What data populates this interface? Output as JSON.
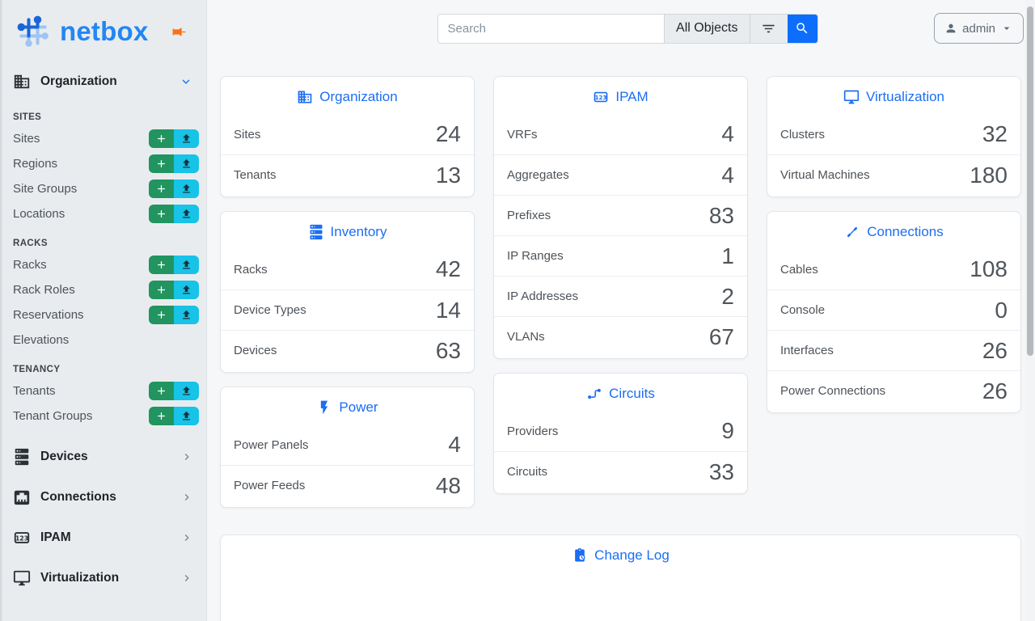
{
  "colors": {
    "accent_blue": "#1b6ef3",
    "brand_blue": "#2287f4",
    "search_button_blue": "#0d6efd",
    "add_green": "#21945f",
    "import_cyan": "#17c3e6",
    "pin_orange": "#f97316"
  },
  "sidebar": {
    "brand": "netbox",
    "organization": {
      "label": "Organization",
      "icon": "building-icon",
      "expanded": true,
      "sections": [
        {
          "header": "SITES",
          "items": [
            {
              "label": "Sites",
              "actions": true
            },
            {
              "label": "Regions",
              "actions": true
            },
            {
              "label": "Site Groups",
              "actions": true
            },
            {
              "label": "Locations",
              "actions": true
            }
          ]
        },
        {
          "header": "RACKS",
          "items": [
            {
              "label": "Racks",
              "actions": true
            },
            {
              "label": "Rack Roles",
              "actions": true
            },
            {
              "label": "Reservations",
              "actions": true
            },
            {
              "label": "Elevations",
              "actions": false
            }
          ]
        },
        {
          "header": "TENANCY",
          "items": [
            {
              "label": "Tenants",
              "actions": true
            },
            {
              "label": "Tenant Groups",
              "actions": true
            }
          ]
        }
      ]
    },
    "groups": [
      {
        "label": "Devices",
        "icon": "server-icon"
      },
      {
        "label": "Connections",
        "icon": "ethernet-icon"
      },
      {
        "label": "IPAM",
        "icon": "counter-icon"
      },
      {
        "label": "Virtualization",
        "icon": "monitor-icon"
      }
    ]
  },
  "topbar": {
    "search": {
      "placeholder": "Search",
      "scope": "All Objects"
    },
    "user": "admin"
  },
  "dashboard": {
    "columns": [
      [
        {
          "title": "Organization",
          "icon": "building-icon",
          "rows": [
            {
              "label": "Sites",
              "value": "24"
            },
            {
              "label": "Tenants",
              "value": "13"
            }
          ]
        },
        {
          "title": "Inventory",
          "icon": "server-icon",
          "rows": [
            {
              "label": "Racks",
              "value": "42"
            },
            {
              "label": "Device Types",
              "value": "14"
            },
            {
              "label": "Devices",
              "value": "63"
            }
          ]
        },
        {
          "title": "Power",
          "icon": "lightning-icon",
          "rows": [
            {
              "label": "Power Panels",
              "value": "4"
            },
            {
              "label": "Power Feeds",
              "value": "48"
            }
          ]
        }
      ],
      [
        {
          "title": "IPAM",
          "icon": "counter-icon",
          "rows": [
            {
              "label": "VRFs",
              "value": "4"
            },
            {
              "label": "Aggregates",
              "value": "4"
            },
            {
              "label": "Prefixes",
              "value": "83"
            },
            {
              "label": "IP Ranges",
              "value": "1"
            },
            {
              "label": "IP Addresses",
              "value": "2"
            },
            {
              "label": "VLANs",
              "value": "67"
            }
          ]
        },
        {
          "title": "Circuits",
          "icon": "circuits-icon",
          "rows": [
            {
              "label": "Providers",
              "value": "9"
            },
            {
              "label": "Circuits",
              "value": "33"
            }
          ]
        }
      ],
      [
        {
          "title": "Virtualization",
          "icon": "monitor-icon",
          "rows": [
            {
              "label": "Clusters",
              "value": "32"
            },
            {
              "label": "Virtual Machines",
              "value": "180"
            }
          ]
        },
        {
          "title": "Connections",
          "icon": "cable-icon",
          "rows": [
            {
              "label": "Cables",
              "value": "108"
            },
            {
              "label": "Console",
              "value": "0"
            },
            {
              "label": "Interfaces",
              "value": "26"
            },
            {
              "label": "Power Connections",
              "value": "26"
            }
          ]
        }
      ]
    ]
  },
  "changelog": {
    "title": "Change Log",
    "icon": "clipboard-clock-icon"
  }
}
